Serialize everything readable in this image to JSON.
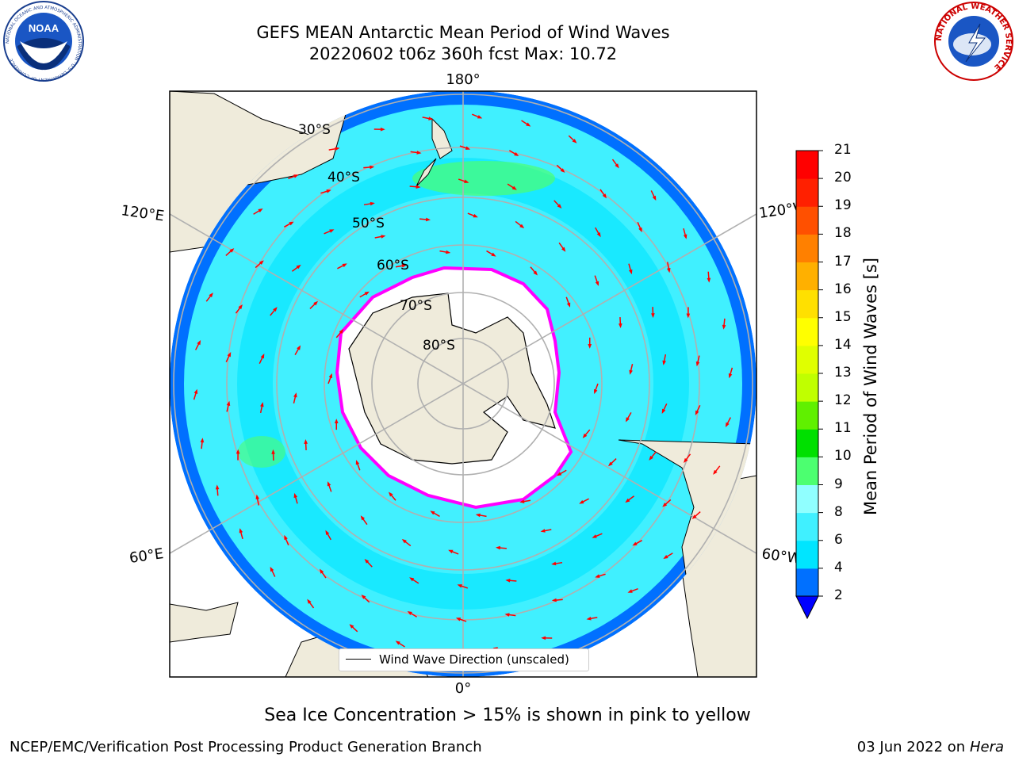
{
  "header": {
    "title_line1": "GEFS MEAN Antarctic Mean Period of Wind Waves",
    "title_line2": "20220602 t06z 360h fcst   Max: 10.72"
  },
  "logos": {
    "left": "noaa-logo",
    "left_text": "NOAA",
    "left_ring_text": "NATIONAL OCEANIC AND ATMOSPHERIC ADMINISTRATION · U.S. DEPARTMENT OF COMMERCE",
    "right": "nws-logo",
    "right_ring_text": "NATIONAL WEATHER SERVICE"
  },
  "map": {
    "projection": "south-polar-stereographic",
    "longitude_labels": {
      "top": "180°",
      "bottom": "0°",
      "left_upper": "120°E",
      "left_lower": "60°E",
      "right_upper": "120°W",
      "right_lower": "60°W"
    },
    "latitude_labels": [
      "30°S",
      "40°S",
      "50°S",
      "60°S",
      "70°S",
      "80°S"
    ],
    "legend": "Wind Wave Direction (unscaled)",
    "arrow_color": "#ff0000",
    "land_color": "#efebdb",
    "grid_color": "#b0b0b0"
  },
  "colorbar": {
    "label": "Mean Period of Wind Waves [s]",
    "ticks": [
      "2",
      "4",
      "6",
      "8",
      "9",
      "10",
      "11",
      "12",
      "13",
      "14",
      "15",
      "16",
      "17",
      "18",
      "19",
      "20",
      "21"
    ],
    "under_color": "#0000ff",
    "colors": [
      "#0070ff",
      "#00e5ff",
      "#40f0ff",
      "#90ffff",
      "#4cff70",
      "#00e000",
      "#60f000",
      "#c0ff00",
      "#e0ff00",
      "#ffff00",
      "#ffe000",
      "#ffb000",
      "#ff8000",
      "#ff5000",
      "#ff2000",
      "#ff0000"
    ]
  },
  "notes": {
    "sea_ice": "Sea Ice Concentration > 15% is shown in pink to yellow"
  },
  "footer": {
    "left": "NCEP/EMC/Verification Post Processing Product Generation Branch",
    "right_date": "03 Jun 2022 on",
    "right_host": "Hera"
  }
}
